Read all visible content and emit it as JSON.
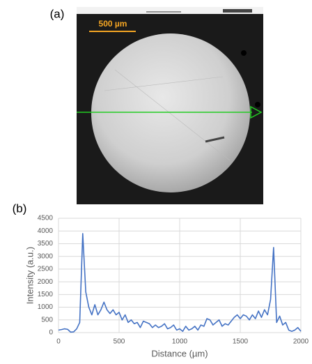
{
  "panel_labels": [
    "(a)",
    "(b)"
  ],
  "image": {
    "scale_bar_label": "500 µm"
  },
  "chart_data": {
    "type": "line",
    "x_label": "Distance (µm)",
    "y_label": "Intensity (a.u.)",
    "x": [
      0,
      25,
      50,
      75,
      100,
      125,
      150,
      175,
      200,
      225,
      250,
      275,
      300,
      325,
      350,
      375,
      400,
      425,
      450,
      475,
      500,
      525,
      550,
      575,
      600,
      625,
      650,
      675,
      700,
      725,
      750,
      775,
      800,
      825,
      850,
      875,
      900,
      925,
      950,
      975,
      1000,
      1025,
      1050,
      1075,
      1100,
      1125,
      1150,
      1175,
      1200,
      1225,
      1250,
      1275,
      1300,
      1325,
      1350,
      1375,
      1400,
      1425,
      1450,
      1475,
      1500,
      1525,
      1550,
      1575,
      1600,
      1625,
      1650,
      1675,
      1700,
      1725,
      1750,
      1775,
      1800,
      1825,
      1850,
      1875,
      1900,
      1925,
      1950,
      1975,
      2000
    ],
    "series": [
      {
        "color": "#4472c4",
        "values": [
          100,
          120,
          150,
          130,
          20,
          30,
          150,
          400,
          3900,
          1600,
          1000,
          700,
          1100,
          700,
          900,
          1200,
          900,
          750,
          900,
          700,
          800,
          500,
          700,
          400,
          500,
          350,
          400,
          200,
          450,
          400,
          350,
          200,
          300,
          200,
          250,
          350,
          150,
          200,
          300,
          100,
          150,
          50,
          250,
          100,
          150,
          250,
          100,
          300,
          250,
          550,
          500,
          300,
          400,
          500,
          250,
          350,
          300,
          450,
          600,
          700,
          550,
          700,
          650,
          500,
          700,
          550,
          850,
          600,
          900,
          700,
          1300,
          3350,
          400,
          650,
          300,
          400,
          100,
          50,
          100,
          200,
          50
        ]
      }
    ],
    "xlim": [
      0,
      2000
    ],
    "xticks": [
      0,
      500,
      1000,
      1500,
      2000
    ],
    "ylim": [
      0,
      4500
    ],
    "yticks": [
      0,
      500,
      1000,
      1500,
      2000,
      2500,
      3000,
      3500,
      4000,
      4500
    ],
    "grid": true
  }
}
